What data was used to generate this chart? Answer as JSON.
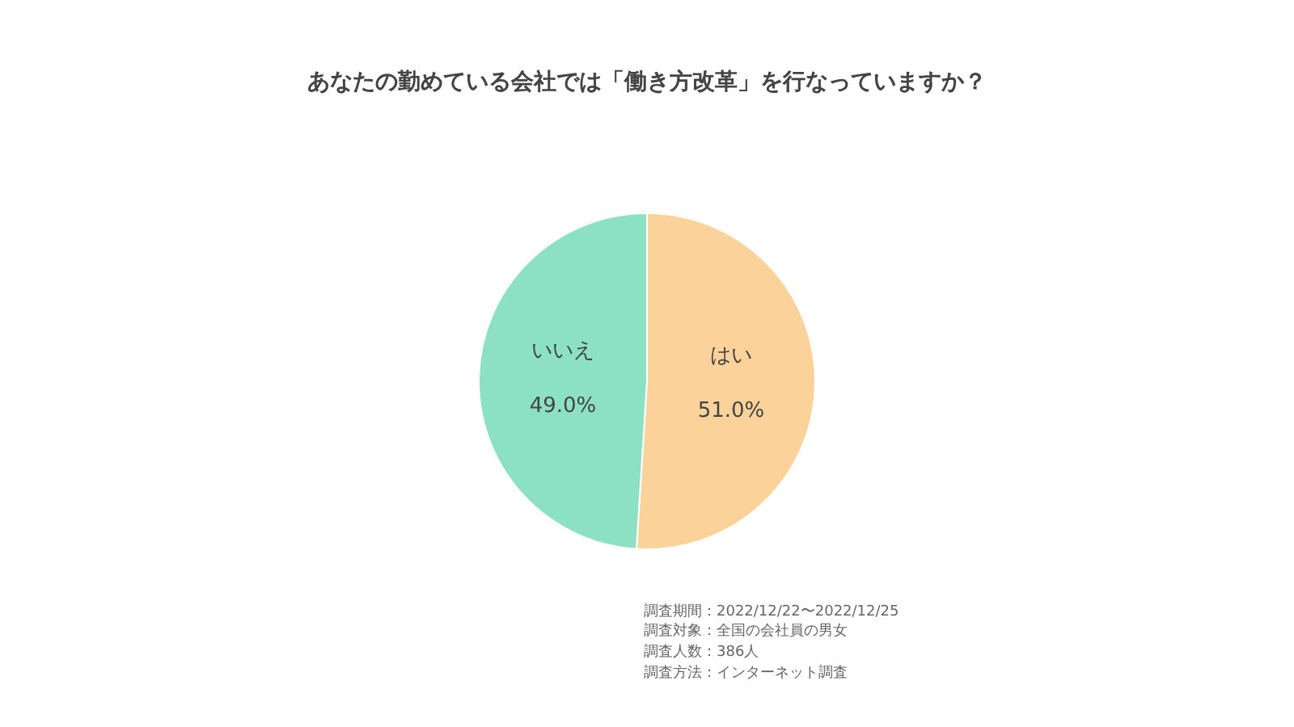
{
  "chart_data": {
    "type": "pie",
    "title": "あなたの勤めている会社では「働き方改革」を行なっていますか？",
    "categories": [
      "はい",
      "いいえ"
    ],
    "values": [
      51.0,
      49.0
    ],
    "value_labels": [
      "51.0%",
      "49.0%"
    ],
    "colors": [
      "#fad29a",
      "#8ce0c4"
    ],
    "legend": false,
    "annotations": [
      "調査期間：2022/12/22〜2022/12/25",
      "調査対象：全国の会社員の男女",
      "調査人数：386人",
      "調査方法：インターネット調査"
    ]
  }
}
